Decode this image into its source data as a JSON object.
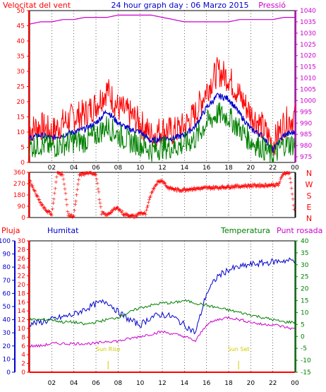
{
  "header": {
    "left_label": "Velocitat del vent",
    "title": "24 hour graph day : 06 Marzo 2015",
    "right_label": "Pressió"
  },
  "lower_header": {
    "rain_label": "Pluja",
    "humidity_label": "Humitat",
    "temperature_label": "Temperatura",
    "dewpoint_label": "Punt rosada"
  },
  "colors": {
    "wind_max": "#ff0000",
    "wind_avg_line": "#0000cc",
    "wind_green": "#008000",
    "pressure": "#cc00cc",
    "direction": "#ff0000",
    "humidity": "#0000cc",
    "temperature": "#008000",
    "dewpoint": "#cc00cc",
    "rain": "#ff0000",
    "grid": "#000000",
    "sun_marker": "#cccc00"
  },
  "chart_data": [
    {
      "type": "line",
      "title": "24 hour graph day : 06 Marzo 2015",
      "hours": [
        "02",
        "04",
        "06",
        "08",
        "10",
        "12",
        "14",
        "16",
        "18",
        "20",
        "22",
        "00"
      ],
      "y_left_label": "Velocitat del vent",
      "y_left_ticks": [
        "0",
        "5",
        "10",
        "15",
        "20",
        "25",
        "30",
        "35",
        "40",
        "45",
        "50"
      ],
      "y_left_lim": [
        0,
        50
      ],
      "y_right_label": "Pressió",
      "y_right_ticks": [
        "975",
        "980",
        "985",
        "990",
        "995",
        "1000",
        "1005",
        "1010",
        "1015",
        "1020",
        "1025",
        "1030",
        "1035",
        "1040"
      ],
      "y_right_lim": [
        972.5,
        1040
      ],
      "x": [
        0,
        1,
        2,
        3,
        4,
        5,
        6,
        7,
        8,
        9,
        10,
        11,
        12,
        13,
        14,
        15,
        16,
        17,
        18,
        19,
        20,
        21,
        22,
        23,
        24
      ],
      "series": [
        {
          "name": "Velocitat del vent",
          "color": "#ff0000",
          "values": [
            11,
            12,
            10,
            13,
            15,
            16,
            19,
            24,
            18,
            16,
            13,
            9,
            11,
            10,
            12,
            16,
            24,
            30,
            28,
            22,
            16,
            12,
            6,
            13,
            15
          ]
        },
        {
          "name": "",
          "color": "#0000cc",
          "values": [
            8,
            9,
            8,
            9,
            10,
            11,
            13,
            17,
            13,
            11,
            10,
            7,
            8,
            8,
            9,
            12,
            18,
            22,
            21,
            16,
            11,
            9,
            4,
            9,
            10
          ]
        },
        {
          "name": "",
          "color": "#008000",
          "values": [
            5,
            6,
            5,
            6,
            7,
            7,
            9,
            12,
            9,
            7,
            6,
            4,
            5,
            5,
            6,
            8,
            13,
            16,
            15,
            11,
            7,
            5,
            2,
            6,
            6
          ]
        },
        {
          "name": "Pressió",
          "color": "#cc00cc",
          "values": [
            1034,
            1035,
            1035,
            1036,
            1036,
            1037,
            1037,
            1037,
            1038,
            1038,
            1038,
            1038,
            1037,
            1036,
            1035,
            1035,
            1035,
            1035,
            1035,
            1036,
            1036,
            1036,
            1036,
            1037,
            1037
          ]
        }
      ]
    },
    {
      "type": "scatter",
      "y_ticks": [
        "360",
        "270",
        "180",
        "90",
        "0"
      ],
      "y_lim": [
        0,
        360
      ],
      "compass_labels": [
        "N",
        "W",
        "S",
        "E",
        "N"
      ],
      "x": [
        0,
        0.5,
        1,
        1.5,
        2,
        2.5,
        3,
        3.5,
        4,
        4.5,
        5,
        5.5,
        6,
        6.5,
        7,
        7.5,
        8,
        8.5,
        9,
        9.5,
        10,
        10.5,
        11,
        11.5,
        12,
        12.5,
        13,
        13.5,
        14,
        14.5,
        15,
        15.5,
        16,
        16.5,
        17,
        17.5,
        18,
        18.5,
        19,
        19.5,
        20,
        20.5,
        21,
        21.5,
        22,
        22.5,
        23,
        23.5,
        24
      ],
      "values": [
        300,
        200,
        120,
        60,
        30,
        360,
        350,
        20,
        15,
        340,
        355,
        360,
        350,
        40,
        20,
        60,
        80,
        30,
        20,
        10,
        40,
        30,
        200,
        280,
        300,
        240,
        230,
        220,
        225,
        230,
        232,
        235,
        238,
        240,
        242,
        245,
        248,
        250,
        252,
        255,
        256,
        258,
        258,
        260,
        262,
        262,
        360,
        360,
        20
      ]
    },
    {
      "type": "line",
      "y_left_ticks": [
        "0",
        "2",
        "4",
        "6",
        "8",
        "10",
        "12",
        "14",
        "16",
        "18",
        "20",
        "22",
        "24",
        "26",
        "28",
        "30"
      ],
      "y_left_label": "Pluja",
      "y_humidity_ticks": [
        "0",
        "10",
        "20",
        "30",
        "40",
        "50",
        "60",
        "70",
        "80",
        "90",
        "100"
      ],
      "y_humidity_label": "Humitat",
      "y_right_ticks": [
        "-15",
        "-10",
        "-5",
        "0",
        "5",
        "10",
        "15",
        "20",
        "25",
        "30",
        "35",
        "40"
      ],
      "y_right_label": "Temperatura",
      "y_right_lim": [
        -15,
        40
      ],
      "x": [
        0,
        1,
        2,
        3,
        4,
        5,
        6,
        7,
        8,
        9,
        10,
        11,
        12,
        13,
        14,
        15,
        16,
        17,
        18,
        19,
        20,
        21,
        22,
        23,
        24
      ],
      "series": [
        {
          "name": "Humitat",
          "axis": "humidity",
          "color": "#0000cc",
          "values": [
            37,
            38,
            40,
            42,
            44,
            48,
            52,
            54,
            46,
            40,
            36,
            42,
            44,
            42,
            36,
            30,
            60,
            73,
            78,
            80,
            82,
            83,
            84,
            85,
            85
          ]
        },
        {
          "name": "Temperatura",
          "axis": "right",
          "color": "#008000",
          "values": [
            7,
            7,
            7,
            6,
            6,
            5,
            6,
            7,
            8,
            10,
            12,
            13,
            14,
            14,
            15,
            14,
            13,
            12,
            11,
            10,
            9,
            8,
            7,
            6,
            6
          ]
        },
        {
          "name": "Punt rosada",
          "axis": "right",
          "color": "#cc00cc",
          "values": [
            -4,
            -4,
            -3,
            -3,
            -3,
            -3,
            -3,
            -2,
            -2,
            -1,
            0,
            1,
            2,
            1,
            0,
            -2,
            5,
            7,
            8,
            7,
            6,
            5,
            5,
            4,
            3
          ]
        },
        {
          "name": "Pluja",
          "axis": "left",
          "color": "#ff0000",
          "values": [
            0,
            0,
            0,
            0,
            0,
            0,
            0,
            0,
            0,
            0,
            0,
            0,
            0,
            0,
            0,
            0,
            0,
            0,
            0,
            0,
            0,
            0,
            0,
            0,
            0
          ]
        }
      ],
      "annotations": [
        {
          "text": "Sun Rise",
          "hour": 7.1
        },
        {
          "text": "Sun Set",
          "hour": 18.9
        }
      ]
    }
  ]
}
